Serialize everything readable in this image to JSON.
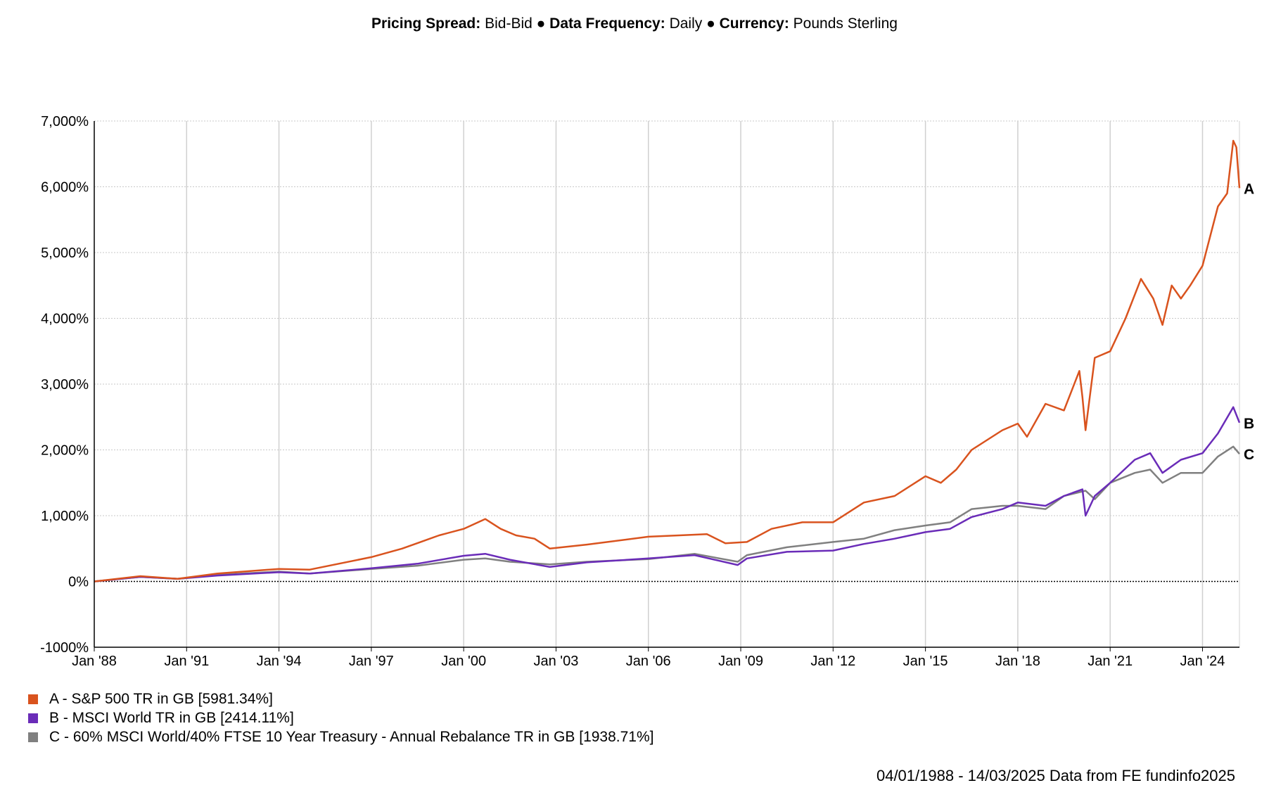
{
  "header": {
    "items": [
      {
        "label": "Pricing Spread:",
        "value": "Bid-Bid"
      },
      {
        "label": "Data Frequency:",
        "value": "Daily"
      },
      {
        "label": "Currency:",
        "value": "Pounds Sterling"
      }
    ],
    "separator": "●"
  },
  "source_note": "04/01/1988 - 14/03/2025 Data from FE fundinfo2025",
  "chart_data": {
    "type": "line",
    "title": "",
    "xlabel": "",
    "ylabel": "",
    "xlim": [
      1988.0,
      2025.2
    ],
    "ylim": [
      -1000,
      7000
    ],
    "yticks": [
      -1000,
      0,
      1000,
      2000,
      3000,
      4000,
      5000,
      6000,
      7000
    ],
    "ytick_labels": [
      "-1000%",
      "0%",
      "1,000%",
      "2,000%",
      "3,000%",
      "4,000%",
      "5,000%",
      "6,000%",
      "7,000%"
    ],
    "xticks": [
      1988,
      1991,
      1994,
      1997,
      2000,
      2003,
      2006,
      2009,
      2012,
      2015,
      2018,
      2021,
      2024
    ],
    "xtick_labels": [
      "Jan '88",
      "Jan '91",
      "Jan '94",
      "Jan '97",
      "Jan '00",
      "Jan '03",
      "Jan '06",
      "Jan '09",
      "Jan '12",
      "Jan '15",
      "Jan '18",
      "Jan '21",
      "Jan '24"
    ],
    "grid": true,
    "legend_position": "bottom-left",
    "series": [
      {
        "id": "C",
        "name": "C - 60% MSCI World/40% FTSE 10 Year Treasury - Annual Rebalance TR in GB [1938.71%]",
        "end_label": "C",
        "color": "#808080",
        "x": [
          1988.0,
          1989.5,
          1990.7,
          1992.0,
          1994.0,
          1995.0,
          1997.0,
          1998.5,
          2000.0,
          2000.7,
          2001.5,
          2002.8,
          2004.0,
          2006.0,
          2007.5,
          2008.9,
          2009.2,
          2010.5,
          2012.0,
          2013.0,
          2014.0,
          2015.0,
          2015.8,
          2016.5,
          2017.5,
          2018.0,
          2018.9,
          2019.5,
          2020.2,
          2020.5,
          2021.0,
          2021.8,
          2022.3,
          2022.7,
          2023.3,
          2024.0,
          2024.5,
          2025.0,
          2025.2
        ],
        "y": [
          0,
          70,
          40,
          100,
          150,
          120,
          190,
          240,
          330,
          350,
          300,
          260,
          300,
          340,
          420,
          300,
          400,
          520,
          600,
          650,
          780,
          850,
          900,
          1100,
          1150,
          1150,
          1100,
          1300,
          1380,
          1250,
          1500,
          1650,
          1700,
          1500,
          1650,
          1650,
          1900,
          2050,
          1939
        ]
      },
      {
        "id": "B",
        "name": "B - MSCI World TR in GB [2414.11%]",
        "end_label": "B",
        "color": "#6a2cb8",
        "x": [
          1988.0,
          1989.5,
          1990.7,
          1992.0,
          1994.0,
          1995.0,
          1997.0,
          1998.5,
          2000.0,
          2000.7,
          2001.5,
          2002.8,
          2004.0,
          2006.0,
          2007.5,
          2008.9,
          2009.2,
          2010.5,
          2012.0,
          2013.0,
          2014.0,
          2015.0,
          2015.8,
          2016.5,
          2017.5,
          2018.0,
          2018.9,
          2019.5,
          2020.1,
          2020.2,
          2020.5,
          2021.0,
          2021.8,
          2022.3,
          2022.7,
          2023.3,
          2024.0,
          2024.5,
          2025.0,
          2025.2
        ],
        "y": [
          0,
          70,
          40,
          90,
          140,
          120,
          200,
          270,
          390,
          420,
          330,
          220,
          290,
          350,
          400,
          250,
          350,
          450,
          470,
          570,
          650,
          750,
          800,
          980,
          1100,
          1200,
          1150,
          1300,
          1400,
          1000,
          1300,
          1500,
          1850,
          1950,
          1650,
          1850,
          1950,
          2250,
          2650,
          2414
        ]
      },
      {
        "id": "A",
        "name": "A - S&P 500 TR in GB [5981.34%]",
        "end_label": "A",
        "color": "#d9531e",
        "x": [
          1988.0,
          1989.5,
          1990.7,
          1992.0,
          1994.0,
          1995.0,
          1997.0,
          1998.0,
          1998.6,
          1999.2,
          2000.0,
          2000.7,
          2001.2,
          2001.7,
          2002.3,
          2002.8,
          2004.0,
          2006.0,
          2007.0,
          2007.9,
          2008.5,
          2009.2,
          2010.0,
          2011.0,
          2012.0,
          2013.0,
          2014.0,
          2015.0,
          2015.5,
          2016.0,
          2016.5,
          2017.5,
          2018.0,
          2018.3,
          2018.9,
          2019.5,
          2020.0,
          2020.1,
          2020.2,
          2020.5,
          2021.0,
          2021.5,
          2022.0,
          2022.4,
          2022.7,
          2023.0,
          2023.3,
          2023.6,
          2024.0,
          2024.5,
          2024.8,
          2025.0,
          2025.1,
          2025.2
        ],
        "y": [
          0,
          80,
          40,
          120,
          190,
          180,
          370,
          500,
          600,
          700,
          800,
          950,
          800,
          700,
          650,
          500,
          560,
          680,
          700,
          720,
          580,
          600,
          800,
          900,
          900,
          1200,
          1300,
          1600,
          1500,
          1700,
          2000,
          2300,
          2400,
          2200,
          2700,
          2600,
          3200,
          2800,
          2300,
          3400,
          3500,
          4000,
          4600,
          4300,
          3900,
          4500,
          4300,
          4500,
          4800,
          5700,
          5900,
          6700,
          6600,
          5981
        ]
      }
    ]
  }
}
